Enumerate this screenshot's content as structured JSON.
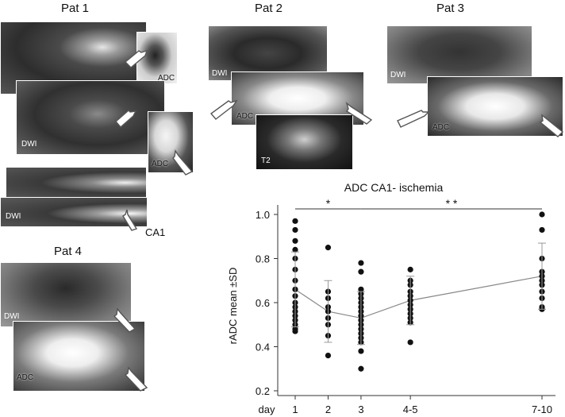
{
  "panels": {
    "pat1": {
      "title": "Pat 1",
      "labels": [
        "ADC",
        "DWI",
        "ADC"
      ]
    },
    "pat2": {
      "title": "Pat 2",
      "labels": [
        "DWI",
        "ADC",
        "T2"
      ]
    },
    "pat3": {
      "title": "Pat 3",
      "labels": [
        "DWI",
        "ADC"
      ]
    },
    "pat4": {
      "title": "Pat 4",
      "labels": [
        "DWI",
        "ADC"
      ]
    },
    "ca1": {
      "dwi_label": "DWI",
      "region_label": "CA1"
    }
  },
  "chart_data": {
    "type": "scatter",
    "title": "ADC CA1- ischemia",
    "xlabel": "day",
    "ylabel": "rADC mean ±SD",
    "ylim": [
      0.2,
      1.0
    ],
    "yticks": [
      "0.2",
      "0.4",
      "0.6",
      "0.8",
      "1.0"
    ],
    "categories": [
      "1",
      "2",
      "3",
      "4-5",
      "7-10"
    ],
    "x_positions": [
      1,
      2,
      3,
      4.5,
      8.5
    ],
    "significance": [
      {
        "from": "1",
        "to": "3",
        "label": "*"
      },
      {
        "from": "3",
        "to": "7-10",
        "label": "* *"
      }
    ],
    "series": [
      {
        "values": [
          [
            0.97,
            0.93,
            0.88,
            0.84,
            0.8,
            0.75,
            0.7,
            0.66,
            0.63,
            0.6,
            0.58,
            0.56,
            0.54,
            0.52,
            0.5,
            0.48,
            0.47
          ],
          [
            0.85,
            0.65,
            0.62,
            0.58,
            0.56,
            0.53,
            0.5,
            0.45,
            0.36
          ],
          [
            0.78,
            0.74,
            0.66,
            0.64,
            0.62,
            0.6,
            0.58,
            0.56,
            0.54,
            0.52,
            0.5,
            0.48,
            0.46,
            0.44,
            0.42,
            0.38,
            0.3
          ],
          [
            0.75,
            0.7,
            0.68,
            0.65,
            0.63,
            0.61,
            0.59,
            0.57,
            0.55,
            0.53,
            0.51,
            0.42
          ],
          [
            1.0,
            0.93,
            0.8,
            0.74,
            0.72,
            0.7,
            0.68,
            0.65,
            0.62,
            0.58,
            0.57
          ]
        ],
        "mean": [
          0.66,
          0.56,
          0.53,
          0.61,
          0.72
        ],
        "sd": [
          0.17,
          0.14,
          0.12,
          0.11,
          0.15
        ]
      }
    ]
  }
}
